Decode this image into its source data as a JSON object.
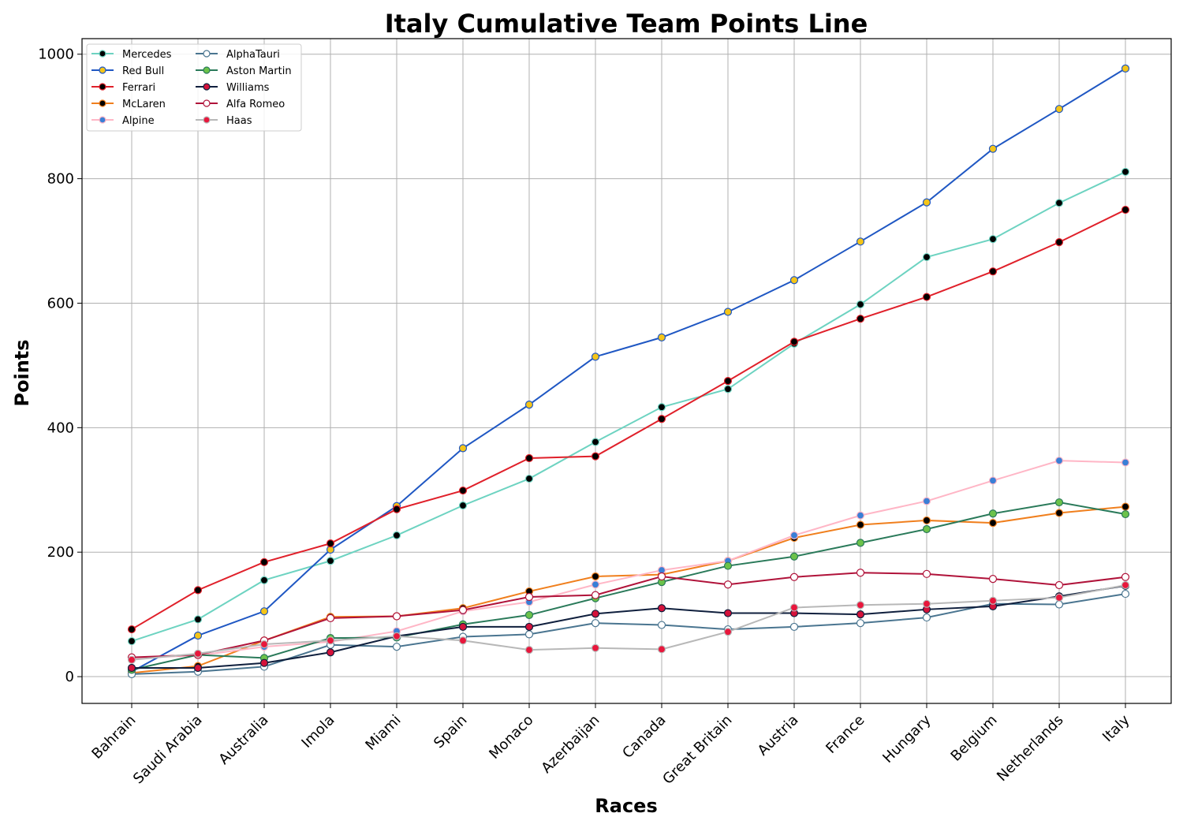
{
  "chart_data": {
    "type": "line",
    "title": "Italy Cumulative Team Points Line",
    "xlabel": "Races",
    "ylabel": "Points",
    "ylim": [
      -43,
      1025
    ],
    "yticks": [
      0,
      200,
      400,
      600,
      800,
      1000
    ],
    "grid": true,
    "legend_position": "top-left",
    "categories": [
      "Bahrain",
      "Saudi Arabia",
      "Australia",
      "Imola",
      "Miami",
      "Spain",
      "Monaco",
      "Azerbaijan",
      "Canada",
      "Great Britain",
      "Austria",
      "France",
      "Hungary",
      "Belgium",
      "Netherlands",
      "Italy"
    ],
    "series": [
      {
        "name": "Mercedes",
        "color": "#6dd3c1",
        "marker_fill": "#000000",
        "marker_edge": "#6dd3c1",
        "values": [
          57,
          92,
          155,
          186,
          227,
          275,
          318,
          377,
          433,
          462,
          535,
          598,
          674,
          703,
          761,
          811
        ]
      },
      {
        "name": "Red Bull",
        "color": "#1f57c3",
        "marker_fill": "#f5c518",
        "marker_edge": "#1f57c3",
        "values": [
          8,
          66,
          105,
          204,
          274,
          367,
          437,
          514,
          545,
          586,
          637,
          699,
          762,
          848,
          912,
          977
        ]
      },
      {
        "name": "Ferrari",
        "color": "#e0202a",
        "marker_fill": "#000000",
        "marker_edge": "#e0202a",
        "values": [
          76,
          139,
          184,
          214,
          269,
          299,
          351,
          354,
          414,
          475,
          538,
          575,
          610,
          651,
          698,
          750
        ]
      },
      {
        "name": "McLaren",
        "color": "#f07f1d",
        "marker_fill": "#000000",
        "marker_edge": "#f07f1d",
        "values": [
          6,
          17,
          58,
          96,
          97,
          110,
          137,
          161,
          164,
          186,
          223,
          244,
          251,
          247,
          263,
          273
        ]
      },
      {
        "name": "Alpine",
        "color": "#ffb6c6",
        "marker_fill": "#3a7fd6",
        "marker_edge": "#ffb6c6",
        "values": [
          30,
          34,
          48,
          56,
          73,
          105,
          120,
          148,
          171,
          186,
          227,
          259,
          282,
          315,
          347,
          344
        ]
      },
      {
        "name": "AlphaTauri",
        "color": "#4a7590",
        "marker_fill": "#ffffff",
        "marker_edge": "#4a7590",
        "values": [
          4,
          8,
          16,
          51,
          48,
          64,
          68,
          86,
          83,
          76,
          80,
          86,
          95,
          117,
          116,
          133
        ]
      },
      {
        "name": "Aston Martin",
        "color": "#2a7a5a",
        "marker_fill": "#6cc24a",
        "marker_edge": "#2a7a5a",
        "values": [
          11,
          35,
          30,
          62,
          63,
          84,
          99,
          126,
          152,
          178,
          193,
          215,
          237,
          262,
          280,
          261
        ]
      },
      {
        "name": "Williams",
        "color": "#0f1f3d",
        "marker_fill": "#d4123a",
        "marker_edge": "#0f1f3d",
        "values": [
          14,
          14,
          22,
          39,
          65,
          80,
          80,
          101,
          110,
          102,
          102,
          100,
          108,
          113,
          129,
          146
        ]
      },
      {
        "name": "Alfa Romeo",
        "color": "#b0133a",
        "marker_fill": "#ffffff",
        "marker_edge": "#b0133a",
        "values": [
          31,
          35,
          58,
          94,
          97,
          107,
          128,
          131,
          161,
          148,
          160,
          167,
          165,
          157,
          147,
          160
        ]
      },
      {
        "name": "Haas",
        "color": "#b8b8b8",
        "marker_fill": "#e8173c",
        "marker_edge": "#b8b8b8",
        "values": [
          27,
          37,
          52,
          58,
          65,
          58,
          43,
          46,
          44,
          72,
          111,
          115,
          117,
          122,
          127,
          147
        ]
      }
    ]
  }
}
